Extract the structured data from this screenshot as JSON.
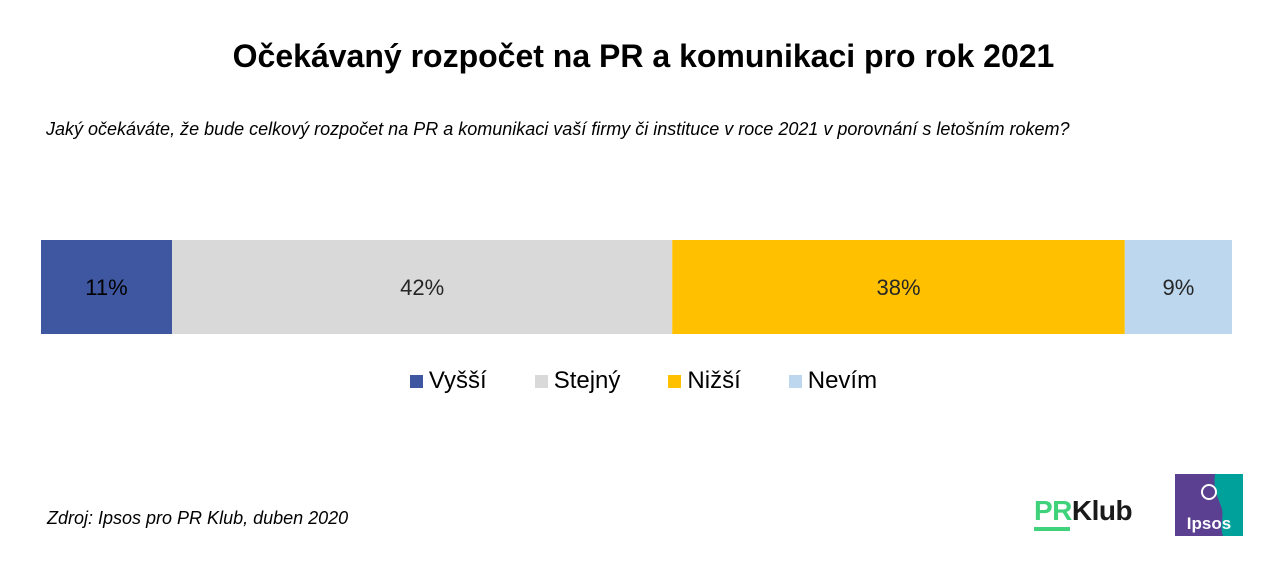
{
  "title": "Očekávaný rozpočet na PR a komunikaci  pro rok 2021",
  "subtitle": "Jaký očekáváte, že bude celkový rozpočet na PR a komunikaci vaší firmy či instituce v roce 2021 v porovnání s letošním rokem?",
  "chart_data": {
    "type": "bar",
    "orientation": "horizontal-stacked-100",
    "categories": [
      ""
    ],
    "series": [
      {
        "name": "Vyšší",
        "values": [
          11
        ],
        "label": "11%",
        "color": "#3f57a0"
      },
      {
        "name": "Stejný",
        "values": [
          42
        ],
        "label": "42%",
        "color": "#d9d9d9"
      },
      {
        "name": "Nižší",
        "values": [
          38
        ],
        "label": "38%",
        "color": "#ffc000"
      },
      {
        "name": "Nevím",
        "values": [
          9
        ],
        "label": "9%",
        "color": "#bdd7ee"
      }
    ],
    "legend_position": "bottom",
    "grid": false
  },
  "source": "Zdroj: Ipsos pro PR Klub, duben 2020",
  "logos": {
    "prklub": {
      "pr": "PR",
      "klub": "Klub"
    },
    "ipsos": {
      "text": "Ipsos",
      "color": "#5b3f91",
      "accent": "#00a19a"
    }
  }
}
